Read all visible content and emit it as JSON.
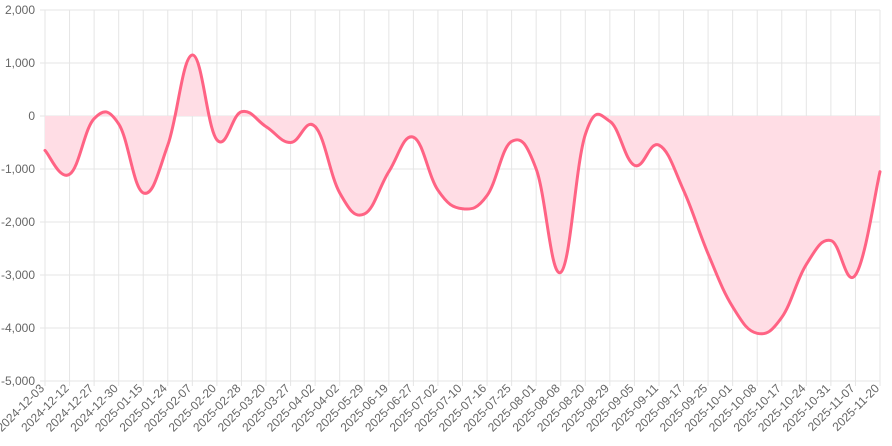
{
  "chart_data": {
    "type": "area",
    "title": "",
    "xlabel": "",
    "ylabel": "",
    "ylim": [
      -5000,
      2000
    ],
    "yticks": [
      2000,
      1000,
      0,
      -1000,
      -2000,
      -3000,
      -4000,
      -5000
    ],
    "ytick_labels": [
      "2,000",
      "1,000",
      "0",
      "-1,000",
      "-2,000",
      "-3,000",
      "-4,000",
      "-5,000"
    ],
    "grid": true,
    "legend": "none",
    "x": [
      "2024-12-03",
      "2024-12-12",
      "2024-12-27",
      "2024-12-30",
      "2025-01-15",
      "2025-01-24",
      "2025-02-07",
      "2025-02-20",
      "2025-02-28",
      "2025-03-20",
      "2025-03-27",
      "2025-04-02",
      "2025-04-02",
      "2025-05-29",
      "2025-06-19",
      "2025-06-27",
      "2025-07-02",
      "2025-07-10",
      "2025-07-16",
      "2025-07-25",
      "2025-08-01",
      "2025-08-08",
      "2025-08-20",
      "2025-08-29",
      "2025-09-05",
      "2025-09-11",
      "2025-09-17",
      "2025-09-25",
      "2025-10-01",
      "2025-10-08",
      "2025-10-17",
      "2025-10-24",
      "2025-10-31",
      "2025-11-07",
      "2025-11-20"
    ],
    "series": [
      {
        "values": [
          -650,
          -1100,
          -50,
          -150,
          -1450,
          -550,
          1150,
          -450,
          80,
          -200,
          -500,
          -200,
          -1450,
          -1850,
          -1050,
          -400,
          -1400,
          -1750,
          -1500,
          -480,
          -1000,
          -2950,
          -350,
          -100,
          -930,
          -550,
          -1400,
          -2600,
          -3600,
          -4100,
          -3800,
          -2800,
          -2350,
          -3000,
          -1050
        ],
        "color": "#ff6384",
        "fill": "#ffdde5"
      }
    ]
  }
}
